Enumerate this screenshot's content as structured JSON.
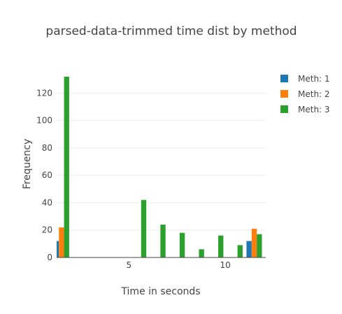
{
  "chart_data": {
    "type": "bar",
    "title": "parsed-data-trimmed time dist by method",
    "xlabel": "Time in seconds",
    "ylabel": "Frequency",
    "xlim": [
      1.25,
      12.1
    ],
    "ylim": [
      0,
      137
    ],
    "x_ticks": [
      5,
      10
    ],
    "y_ticks": [
      0,
      20,
      40,
      60,
      80,
      100,
      120
    ],
    "grid": true,
    "legend_position": "top-right",
    "series": [
      {
        "name": "Meth: 1",
        "color": "#1f77b4",
        "points": [
          {
            "x": 1.5,
            "y": 12
          },
          {
            "x": 11.5,
            "y": 12
          }
        ]
      },
      {
        "name": "Meth: 2",
        "color": "#ff7f0e",
        "points": [
          {
            "x": 1.5,
            "y": 22
          },
          {
            "x": 11.5,
            "y": 21
          },
          {
            "x": 12.5,
            "y": 1
          }
        ]
      },
      {
        "name": "Meth: 3",
        "color": "#2ca02c",
        "points": [
          {
            "x": 1.5,
            "y": 132
          },
          {
            "x": 2.5,
            "y": 0
          },
          {
            "x": 3.5,
            "y": 0
          },
          {
            "x": 4.5,
            "y": 0
          },
          {
            "x": 5.5,
            "y": 42
          },
          {
            "x": 6.5,
            "y": 24
          },
          {
            "x": 7.5,
            "y": 18
          },
          {
            "x": 8.5,
            "y": 6
          },
          {
            "x": 9.5,
            "y": 16
          },
          {
            "x": 10.5,
            "y": 9
          },
          {
            "x": 11.5,
            "y": 17
          }
        ]
      }
    ]
  }
}
